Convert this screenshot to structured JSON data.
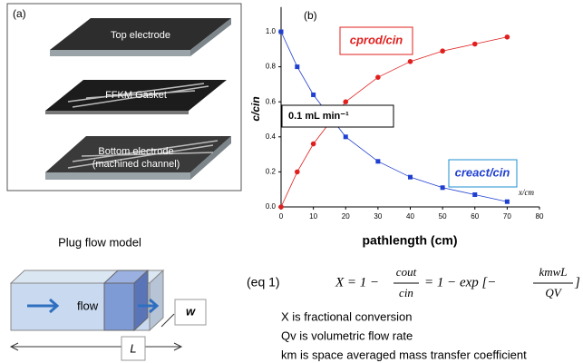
{
  "panel_a": {
    "label": "(a)",
    "top": "Top electrode",
    "gasket": "FFKM Gasket",
    "bottom_1": "Bottom electrode",
    "bottom_2": "(machined channel)"
  },
  "chart_data": {
    "type": "line",
    "panel_label": "(b)",
    "x_label": "pathlength (cm)",
    "y_label": "c/cin",
    "x_unit_note": "x/cm",
    "annotation": "0.1 mL min⁻¹",
    "xlim": [
      0,
      80
    ],
    "ylim": [
      0,
      1.1
    ],
    "xticks": [
      0,
      10,
      20,
      30,
      40,
      50,
      60,
      70,
      80
    ],
    "yticks": [
      {
        "value": 0,
        "label": "0.0"
      },
      0.2,
      0.4,
      0.6,
      0.8,
      {
        "value": 1,
        "label": "1.0"
      }
    ],
    "series": [
      {
        "name": "creact/cin",
        "color": "#1f3fd1",
        "x": [
          0,
          5,
          10,
          20,
          30,
          40,
          50,
          60,
          70
        ],
        "values": [
          1.0,
          0.8,
          0.64,
          0.4,
          0.26,
          0.17,
          0.11,
          0.07,
          0.03
        ]
      },
      {
        "name": "cprod/cin",
        "color": "#e0201e",
        "x": [
          0,
          5,
          10,
          20,
          30,
          40,
          50,
          60,
          70
        ],
        "values": [
          0,
          0.2,
          0.36,
          0.6,
          0.74,
          0.83,
          0.89,
          0.93,
          0.97
        ]
      }
    ]
  },
  "plug_flow": {
    "title": "Plug flow model",
    "flow": "flow",
    "w": "w",
    "L": "L"
  },
  "equation": {
    "tag": "(eq 1)",
    "lhs": "X = 1 −",
    "num1": "cout",
    "den1": "cin",
    "mid": "= 1 − exp [−",
    "num2": "kmwL",
    "den2": "QV",
    "end": "]",
    "defs": [
      "X is fractional conversion",
      "Qv is volumetric flow rate",
      "km is space averaged mass transfer coefficient"
    ]
  }
}
